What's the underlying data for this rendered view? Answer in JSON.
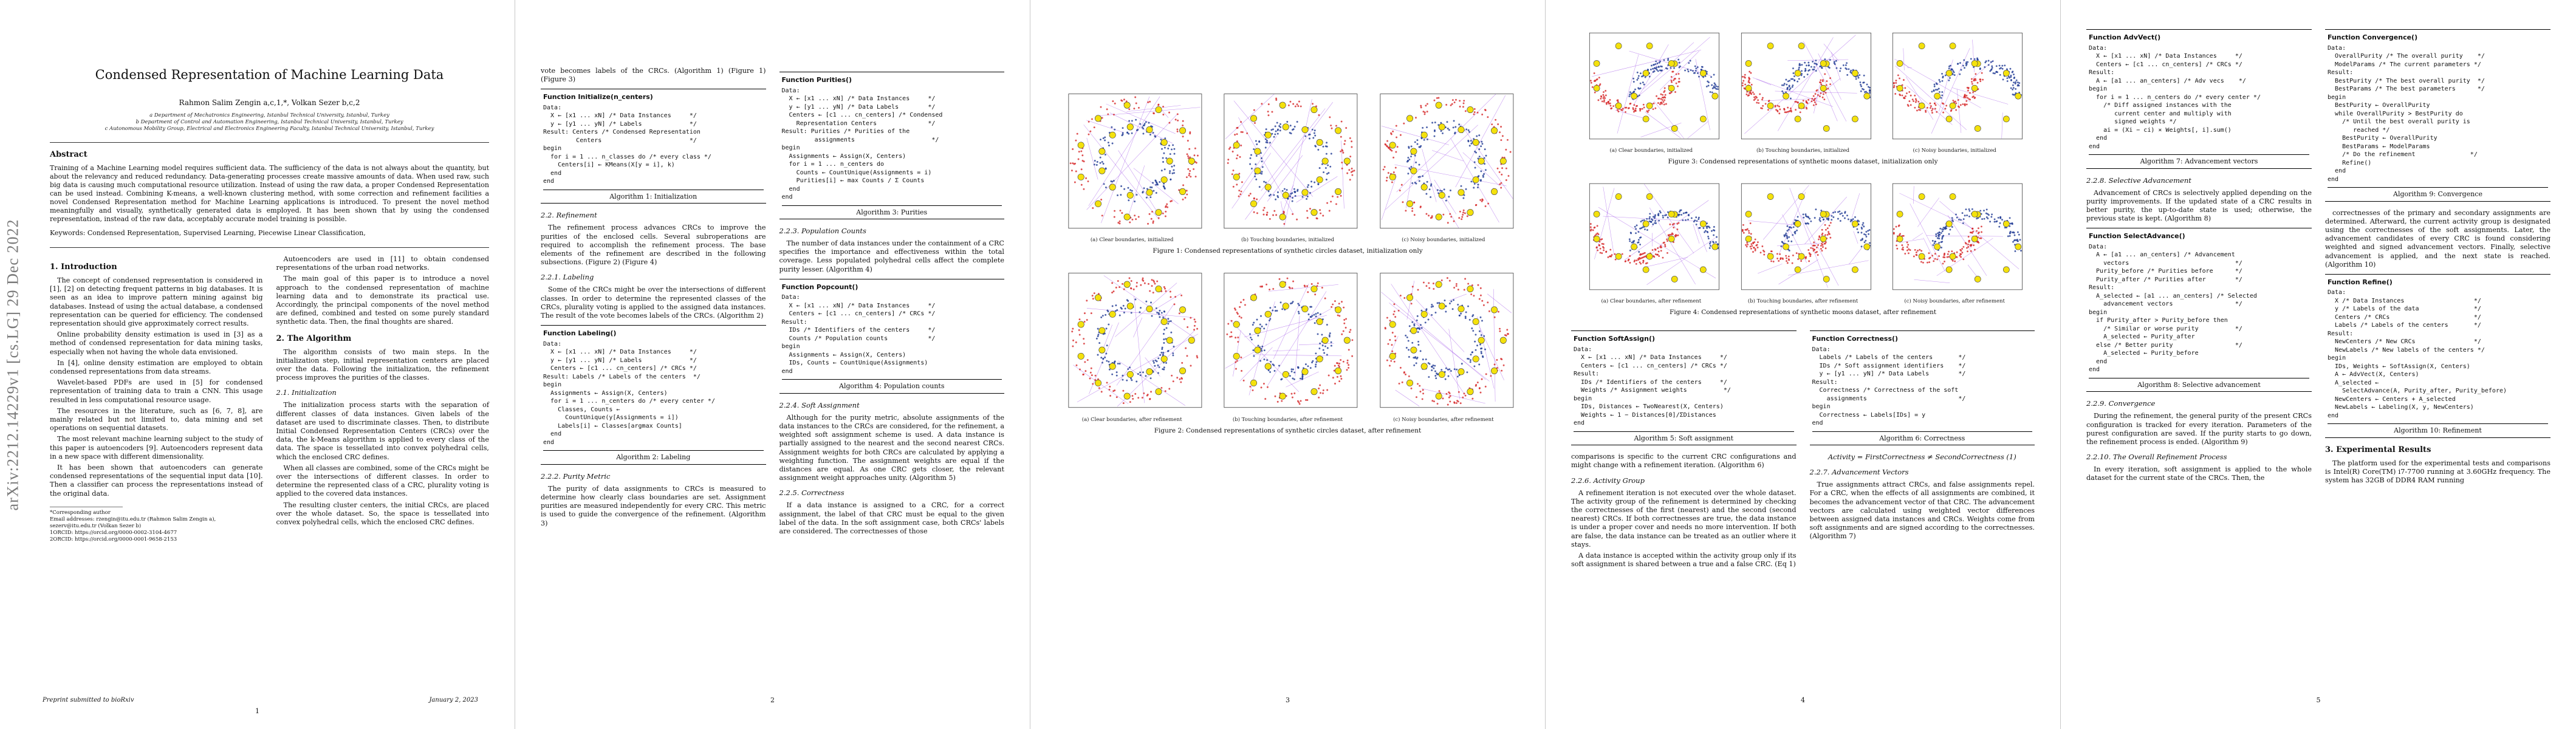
{
  "arxiv_id": "arXiv:2212.14229v1  [cs.LG]  29 Dec 2022",
  "p1": {
    "title": "Condensed Representation of Machine Learning Data",
    "authors": "Rahmon Salim Zengin a,c,1,*, Volkan Sezer b,c,2",
    "aff1": "a Department of Mechatronics Engineering, Istanbul Technical University, Istanbul, Turkey",
    "aff2": "b Department of Control and Automation Engineering, Istanbul Technical University, Istanbul, Turkey",
    "aff3": "c Autonomous Mobility Group, Electrical and Electronics Engineering Faculty, Istanbul Technical University, Istanbul, Turkey",
    "abstract_h": "Abstract",
    "abstract": "Training of a Machine Learning model requires sufficient data. The sufficiency of the data is not always about the quantity, but about the relevancy and reduced redundancy. Data-generating processes create massive amounts of data. When used raw, such big data is causing much computational resource utilization. Instead of using the raw data, a proper Condensed Representation can be used instead. Combining K-means, a well-known clustering method, with some correction and refinement facilities a novel Condensed Representation method for Machine Learning applications is introduced. To present the novel method meaningfully and visually, synthetically generated data is employed. It has been shown that by using the condensed representation, instead of the raw data, acceptably accurate model training is possible.",
    "keywords": "Keywords:  Condensed Representation, Supervised Learning, Piecewise Linear Classification,",
    "intro_h": "1. Introduction",
    "intro1": "The concept of condensed representation is considered in [1], [2] on detecting frequent patterns in big databases. It is seen as an idea to improve pattern mining against big databases. Instead of using the actual database, a condensed representation can be queried for efficiency. The condensed representation should give approximately correct results.",
    "intro2": "Online probability density estimation is used in [3] as a method of condensed representation for data mining tasks, especially when not having the whole data envisioned.",
    "intro3": "In [4], online density estimation are employed to obtain condensed representations from data streams.",
    "intro4": "Wavelet-based PDFs are used in [5] for condensed representation of training data to train a CNN. This usage resulted in less computational resource usage.",
    "intro5": "The resources in the literature, such as [6, 7, 8], are mainly related but not limited to, data mining and set operations on sequential datasets.",
    "intro6": "The most relevant machine learning subject to the study of this paper is autoencoders [9]. Autoencoders represent data in a new space with different dimensionality.",
    "intro7": "It has been shown that autoencoders can generate condensed representations of the sequential input data [10]. Then a classifier can process the representations instead of the original data.",
    "fn1": "*Corresponding author",
    "fn2": "Email addresses: rzengin@itu.edu.tr (Rahmon Salim Zengin a), sezerv@itu.edu.tr (Volkan Sezer b)",
    "fn3": "1ORCID: https://orcid.org/0000-0002-3104-4677",
    "fn4": "2ORCID: https://orcid.org/0000-0001-9658-2153",
    "c2a": "Autoencoders are used in [11] to obtain condensed representations of the urban road networks.",
    "c2b": "The main goal of this paper is to introduce a novel approach to the condensed representation of machine learning data and to demonstrate its practical use. Accordingly, the principal components of the novel method are defined, combined and tested on some purely standard synthetic data. Then, the final thoughts are shared.",
    "algo_h": "2. The Algorithm",
    "algo_p": "The algorithm consists of two main steps. In the initialization step, initial representation centers are placed over the data. Following the initialization, the refinement process improves the purities of the classes.",
    "init_h": "2.1. Initialization",
    "init1": "The initialization process starts with the separation of different classes of data instances. Given labels of the dataset are used to discriminate classes. Then, to distribute Initial Condensed Representation Centers (CRCs) over the data, the k-Means algorithm is applied to every class of the data. The space is tessellated into convex polyhedral cells, which the enclosed CRC defines.",
    "init2": "When all classes are combined, some of the CRCs might be over the intersections of different classes. In order to determine the represented class of a CRC, plurality voting is applied to the covered data instances.",
    "init3": "The resulting cluster centers, the initial CRCs, are placed over the whole dataset. So, the space is tessellated into convex polyhedral cells, which the enclosed CRC defines.",
    "footer_l": "Preprint submitted to bioRxiv",
    "footer_r": "January 2, 2023",
    "page": "1"
  },
  "p2": {
    "top": "vote becomes labels of the CRCs. (Algorithm 1) (Figure 1) (Figure 3)",
    "a1_name": "Function Initialize(n_centers)",
    "a1_lines": [
      "Data:",
      "  X ← [x1 ... xN] /* Data Instances     */",
      "  y ← [y1 ... yN] /* Labels             */",
      "Result: Centers /* Condensed Representation",
      "         Centers                        */",
      "begin",
      "  for i = 1 ... n_classes do /* every class */",
      "    Centers[i] ← KMeans(X[y = i], k)",
      "  end",
      "end"
    ],
    "a1_cap": "Algorithm 1: Initialization",
    "ref_h": "2.2. Refinement",
    "ref_p": "The refinement process advances CRCs to improve the purities of the enclosed cells. Several subroperations are required to accomplish the refinement process. The base elements of the refinement are described in the following subsections. (Figure 2) (Figure 4)",
    "lab_h": "2.2.1. Labeling",
    "lab_p": "Some of the CRCs might be over the intersections of different classes. In order to determine the represented classes of the CRCs, plurality voting is applied to the assigned data instances. The result of the vote becomes labels of the CRCs. (Algorithm 2)",
    "a2_name": "Function Labeling()",
    "a2_lines": [
      "Data:",
      "  X ← [x1 ... xN] /* Data Instances     */",
      "  y ← [y1 ... yN] /* Labels             */",
      "  Centers ← [c1 ... cn_centers] /* CRCs */",
      "Result: Labels /* Labels of the centers  */",
      "begin",
      "  Assignments ← Assign(X, Centers)",
      "  for i = 1 ... n_centers do /* every center */",
      "    Classes, Counts ←",
      "      CountUnique(y[Assignments = i])",
      "    Labels[i] ← Classes[argmax Counts]",
      "  end",
      "end"
    ],
    "a2_cap": "Algorithm 2: Labeling",
    "pm_h": "2.2.2. Purity Metric",
    "pm_p": "The purity of data assignments to CRCs is measured to determine how clearly class boundaries are set. Assignment purities are measured independently for every CRC. This metric is used to guide the convergence of the refinement. (Algorithm 3)",
    "a3_name": "Function Purities()",
    "a3_lines": [
      "Data:",
      "  X ← [x1 ... xN] /* Data Instances     */",
      "  y ← [y1 ... yN] /* Data Labels        */",
      "  Centers ← [c1 ... cn_centers] /* Condensed",
      "    Representation Centers              */",
      "Result: Purities /* Purities of the",
      "         assignments                     */",
      "begin",
      "  Assignments ← Assign(X, Centers)",
      "  for i = 1 ... n_centers do",
      "    Counts ← CountUnique(Assignments = i)",
      "    Purities[i] ← max Counts / Σ Counts",
      "  end",
      "end"
    ],
    "a3_cap": "Algorithm 3: Purities",
    "pc_h": "2.2.3. Population Counts",
    "pc_p": "The number of data instances under the containment of a CRC specifies the importance and effectiveness within the total coverage. Less populated polyhedral cells affect the complete purity lesser. (Algorithm 4)",
    "a4_name": "Function Popcount()",
    "a4_lines": [
      "Data:",
      "  X ← [x1 ... xN] /* Data Instances     */",
      "  Centers ← [c1 ... cn_centers] /* CRCs */",
      "Result:",
      "  IDs /* Identifiers of the centers     */",
      "  Counts /* Population counts           */",
      "begin",
      "  Assignments ← Assign(X, Centers)",
      "  IDs, Counts ← CountUnique(Assignments)",
      "end"
    ],
    "a4_cap": "Algorithm 4: Population counts",
    "sa_h": "2.2.4. Soft Assignment",
    "sa_p": "Although for the purity metric, absolute assignments of the data instances to the CRCs are considered, for the refinement, a weighted soft assignment scheme is used. A data instance is partially assigned to the nearest and the second nearest CRCs. Assignment weights for both CRCs are calculated by applying a weighting function. The assignment weights are equal if the distances are equal. As one CRC gets closer, the relevant assignment weight approaches unity. (Algorithm 5)",
    "co_h": "2.2.5. Correctness",
    "co_p": "If a data instance is assigned to a CRC, for a correct assignment, the label of that CRC must be equal to the given label of the data. In the soft assignment case, both CRCs' labels are considered. The correctnesses of those",
    "page": "2"
  },
  "p3": {
    "fig1_subs": [
      "(a) Clear boundaries, initialized",
      "(b) Touching boundaries, initialized",
      "(c) Noisy boundaries, initialized"
    ],
    "fig1_cap": "Figure 1: Condensed representations of synthetic circles dataset, initialization only",
    "fig2_subs": [
      "(a) Clear boundaries, after refinement",
      "(b) Touching boundaries, after refinement",
      "(c) Noisy boundaries, after refinement"
    ],
    "fig2_cap": "Figure 2: Condensed representations of synthetic circles dataset, after refinement",
    "page": "3"
  },
  "p4": {
    "fig3_subs": [
      "(a) Clear boundaries, initialized",
      "(b) Touching boundaries, initialized",
      "(c) Noisy boundaries, initialized"
    ],
    "fig3_cap": "Figure 3: Condensed representations of synthetic moons dataset, initialization only",
    "fig4_subs": [
      "(a) Clear boundaries, after refinement",
      "(b) Touching boundaries, after refinement",
      "(c) Noisy boundaries, after refinement"
    ],
    "fig4_cap": "Figure 4: Condensed representations of synthetic moons dataset, after refinement",
    "panel_title": "Moons dataset with noisy boundaries, different classes, Purity 0.886",
    "a5_name": "Function SoftAssign()",
    "a5_lines": [
      "Data:",
      "  X ← [x1 ... xN] /* Data Instances     */",
      "  Centers ← [c1 ... cn_centers] /* CRCs */",
      "Result:",
      "  IDs /* Identifiers of the centers     */",
      "  Weights /* Assignment weights          */",
      "begin",
      "  IDs, Distances ← TwoNearest(X, Centers)",
      "  Weights ← 1 − Distances[0]/ΣDistances",
      "end"
    ],
    "a5_cap": "Algorithm 5: Soft assignment",
    "a6_name": "Function Correctness()",
    "a6_lines": [
      "Data:",
      "  Labels /* Labels of the centers       */",
      "  IDs /* Soft assignment identifiers    */",
      "  y ← [y1 ... yN] /* Data Labels        */",
      "Result:",
      "  Correctness /* Correctness of the soft",
      "    assignments                         */",
      "begin",
      "  Correctness ← Labels[IDs] = y",
      "end"
    ],
    "a6_cap": "Algorithm 6: Correctness",
    "c1a": "comparisons is specific to the current CRC configurations and might change with a refinement iteration. (Algorithm 6)",
    "ag_h": "2.2.6. Activity Group",
    "ag_p": "A refinement iteration is not executed over the whole dataset. The activity group of the refinement is determined by checking the correctnesses of the first (nearest) and the second (second nearest) CRCs. If both correctnesses are true, the data instance is under a proper cover and needs no more intervention. If both are false, the data instance can be treated as an outlier where it stays.",
    "ag_p2": "A data instance is accepted within the activity group only if its soft assignment is shared between a true and a false CRC. (Eq 1)",
    "eq1": "Activity = FirstCorrectness ≠ SecondCorrectness   (1)",
    "av_h": "2.2.7. Advancement Vectors",
    "av_p": "True assignments attract CRCs, and false assignments repel. For a CRC, when the effects of all assignments are combined, it becomes the advancement vector of that CRC. The advancement vectors are calculated using weighted vector differences between assigned data instances and CRCs. Weights come from soft assignments and are signed according to the correctnesses. (Algorithm 7)",
    "page": "4"
  },
  "p5": {
    "a7_name": "Function AdvVect()",
    "a7_lines": [
      "Data:",
      "  X ← [x1 ... xN] /* Data Instances     */",
      "  Centers ← [c1 ... cn_centers] /* CRCs */",
      "Result:",
      "  A ← [a1 ... an_centers] /* Adv vecs    */",
      "begin",
      "  for i = 1 ... n_centers do /* every center */",
      "    /* Diff assigned instances with the",
      "       current center and multiply with",
      "       signed weights */",
      "    ai = (Xi − ci) × Weights[, i].sum()",
      "  end",
      "end"
    ],
    "a7_cap": "Algorithm 7: Advancement vectors",
    "sel_h": "2.2.8. Selective Advancement",
    "sel_p": "Advancement of CRCs is selectively applied depending on the purity improvements. If the updated state of a CRC results in better purity, the up-to-date state is used; otherwise, the previous state is kept. (Algorithm 8)",
    "a8_name": "Function SelectAdvance()",
    "a8_lines": [
      "Data:",
      "  A ← [a1 ... an_centers] /* Advancement",
      "    vectors                             */",
      "  Purity_before /* Purities before      */",
      "  Purity_after /* Purities after        */",
      "Result:",
      "  A_selected ← [a1 ... an_centers] /* Selected",
      "    advancement vectors                 */",
      "begin",
      "  if Purity_after > Purity_before then",
      "    /* Similar or worse purity          */",
      "    A_selected ← Purity_after",
      "  else /* Better purity                 */",
      "    A_selected ← Purity_before",
      "  end",
      "end"
    ],
    "a8_cap": "Algorithm 8: Selective advancement",
    "cv_h": "2.2.9. Convergence",
    "cv_p": "During the refinement, the general purity of the present CRCs configuration is tracked for every iteration. Parameters of the purest configuration are saved. If the purity starts to go down, the refinement process is ended. (Algorithm 9)",
    "or_h": "2.2.10. The Overall Refinement Process",
    "or_p": "In every iteration, soft assignment is applied to the whole dataset for the current state of the CRCs. Then, the",
    "a9_name": "Function Convergence()",
    "a9_lines": [
      "Data:",
      "  OverallPurity /* The overall purity    */",
      "  ModelParams /* The current parameters */",
      "Result:",
      "  BestPurity /* The best overall purity  */",
      "  BestParams /* The best parameters      */",
      "begin",
      "  BestPurity ← OverallPurity",
      "  while OverallPurity > BestPurity do",
      "    /* Until the best overall purity is",
      "       reached */",
      "    BestPurity ← OverallPurity",
      "    BestParams ← ModelParams",
      "    /* Do the refinement               */",
      "    Refine()",
      "  end",
      "end"
    ],
    "a9_cap": "Algorithm 9: Convergence",
    "c2a": "correctnesses of the primary and secondary assignments are determined. Afterward, the current activity group is designated using the correctnesses of the soft assignments. Later, the advancement candidates of every CRC is found considering weighted and signed advancement vectors. Finally, selective advancement is applied, and the next state is reached. (Algorithm 10)",
    "a10_name": "Function Refine()",
    "a10_lines": [
      "Data:",
      "  X /* Data Instances                   */",
      "  y /* Labels of the data               */",
      "  Centers /* CRCs                       */",
      "  Labels /* Labels of the centers       */",
      "Result:",
      "  NewCenters /* New CRCs                */",
      "  NewLabels /* New labels of the centers */",
      "begin",
      "  IDs, Weights ← SoftAssign(X, Centers)",
      "  A ← AdvVect(X, Centers)",
      "  A_selected ←",
      "    SelectAdvance(A, Purity_after, Purity_before)",
      "  NewCenters ← Centers + A_selected",
      "  NewLabels ← Labeling(X, y, NewCenters)",
      "end"
    ],
    "a10_cap": "Algorithm 10: Refinement",
    "exp_h": "3. Experimental Results",
    "exp_p": "The platform used for the experimental tests and comparisons is Intel(R) Core(TM) i7-7700 running at 3.60GHz frequency. The system has 32GB of DDR4 RAM running",
    "page": "5"
  }
}
